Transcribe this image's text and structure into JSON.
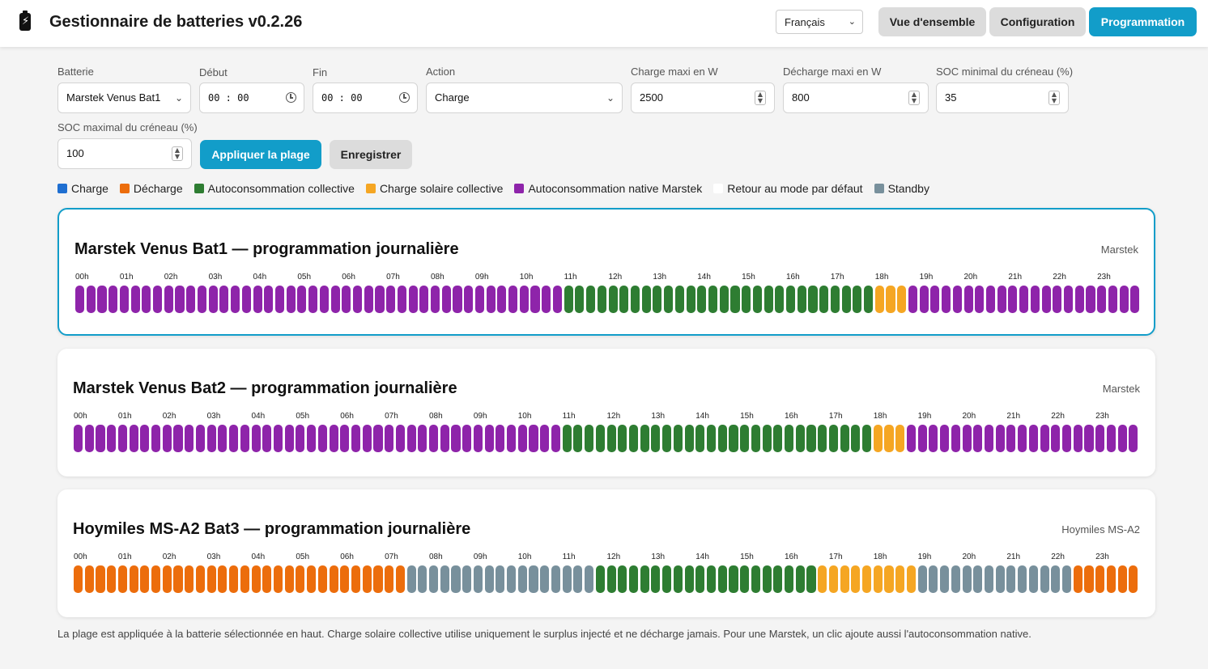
{
  "header": {
    "title": "Gestionnaire de batteries v0.2.26",
    "language": "Français",
    "nav": [
      "Vue d'ensemble",
      "Configuration",
      "Programmation"
    ]
  },
  "form": {
    "battery_label": "Batterie",
    "battery_value": "Marstek Venus Bat1",
    "start_label": "Début",
    "start_value": "00 : 00",
    "end_label": "Fin",
    "end_value": "00 : 00",
    "action_label": "Action",
    "action_value": "Charge",
    "charge_max_label": "Charge maxi en W",
    "charge_max_value": "2500",
    "discharge_max_label": "Décharge maxi en W",
    "discharge_max_value": "800",
    "soc_min_label": "SOC minimal du créneau (%)",
    "soc_min_value": "35",
    "soc_max_label": "SOC maximal du créneau (%)",
    "soc_max_value": "100",
    "apply_button": "Appliquer la plage",
    "save_button": "Enregistrer"
  },
  "legend": [
    {
      "label": "Charge",
      "color": "#1f6fd1"
    },
    {
      "label": "Décharge",
      "color": "#ec6d0c"
    },
    {
      "label": "Autoconsommation collective",
      "color": "#2e7d32"
    },
    {
      "label": "Charge solaire collective",
      "color": "#f5a623"
    },
    {
      "label": "Autoconsommation native Marstek",
      "color": "#8e24aa"
    },
    {
      "label": "Retour au mode par défaut",
      "color": "#ffffff"
    },
    {
      "label": "Standby",
      "color": "#78909c"
    }
  ],
  "hours": [
    "00h",
    "01h",
    "02h",
    "03h",
    "04h",
    "05h",
    "06h",
    "07h",
    "08h",
    "09h",
    "10h",
    "11h",
    "12h",
    "13h",
    "14h",
    "15h",
    "16h",
    "17h",
    "18h",
    "19h",
    "20h",
    "21h",
    "22h",
    "23h"
  ],
  "cards": [
    {
      "title": "Marstek Venus Bat1 — programmation journalière",
      "brand": "Marstek",
      "selected": true,
      "segments": [
        {
          "mode": "Autoconsommation native Marstek",
          "count": 44
        },
        {
          "mode": "Autoconsommation collective",
          "count": 28
        },
        {
          "mode": "Charge solaire collective",
          "count": 3
        },
        {
          "mode": "Autoconsommation native Marstek",
          "count": 21
        }
      ]
    },
    {
      "title": "Marstek Venus Bat2 — programmation journalière",
      "brand": "Marstek",
      "selected": false,
      "segments": [
        {
          "mode": "Autoconsommation native Marstek",
          "count": 44
        },
        {
          "mode": "Autoconsommation collective",
          "count": 28
        },
        {
          "mode": "Charge solaire collective",
          "count": 3
        },
        {
          "mode": "Autoconsommation native Marstek",
          "count": 21
        }
      ]
    },
    {
      "title": "Hoymiles MS-A2 Bat3 — programmation journalière",
      "brand": "Hoymiles MS-A2",
      "selected": false,
      "segments": [
        {
          "mode": "Décharge",
          "count": 30
        },
        {
          "mode": "Standby",
          "count": 17
        },
        {
          "mode": "Autoconsommation collective",
          "count": 20
        },
        {
          "mode": "Charge solaire collective",
          "count": 9
        },
        {
          "mode": "Standby",
          "count": 14
        },
        {
          "mode": "Décharge",
          "count": 6
        }
      ]
    }
  ],
  "footnote": "La plage est appliquée à la batterie sélectionnée en haut. Charge solaire collective utilise uniquement le surplus injecté et ne décharge jamais. Pour une Marstek, un clic ajoute aussi l'autoconsommation native."
}
